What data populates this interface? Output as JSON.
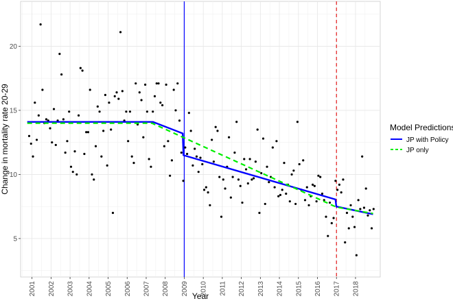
{
  "chart_data": {
    "type": "scatter",
    "xlabel": "Year",
    "ylabel": "Change in mortality rate 20-29",
    "xlim": [
      2000.4,
      2019.3
    ],
    "ylim": [
      2.0,
      23.5
    ],
    "x_ticks": [
      "2001",
      "2002",
      "2003",
      "2004",
      "2005",
      "2006",
      "2007",
      "2008",
      "2009",
      "2010",
      "2011",
      "2012",
      "2013",
      "2014",
      "2015",
      "2016",
      "2017",
      "2018"
    ],
    "y_ticks": [
      5,
      10,
      15,
      20
    ],
    "grid": true,
    "legend": {
      "title": "Model Predictions",
      "placement": "right",
      "entries": [
        {
          "label": "JP with Policy",
          "color": "#0000ff",
          "style": "solid"
        },
        {
          "label": "JP only",
          "color": "#00ee00",
          "style": "dashed"
        }
      ]
    },
    "vlines": [
      {
        "x": 2009.0,
        "color": "#0000ff",
        "style": "solid"
      },
      {
        "x": 2017.0,
        "color": "#e31a1c",
        "style": "dashed"
      }
    ],
    "series": [
      {
        "name": "JP with Policy",
        "color": "#0000ff",
        "style": "solid",
        "x": [
          2000.75,
          2007.35,
          2008.92,
          2008.96,
          2016.95,
          2016.99,
          2018.92
        ],
        "y": [
          14.1,
          14.1,
          13.2,
          11.5,
          8.05,
          7.5,
          6.9
        ]
      },
      {
        "name": "JP only",
        "color": "#00ee00",
        "style": "dashed",
        "x": [
          2000.75,
          2007.3,
          2017.0,
          2018.92
        ],
        "y": [
          14.0,
          14.0,
          7.45,
          6.95
        ]
      },
      {
        "name": "observed",
        "color": "#000000",
        "points": [
          [
            2000.85,
            13.0
          ],
          [
            2000.95,
            12.4
          ],
          [
            2001.05,
            11.4
          ],
          [
            2001.15,
            15.6
          ],
          [
            2001.25,
            12.7
          ],
          [
            2001.35,
            14.6
          ],
          [
            2001.45,
            21.7
          ],
          [
            2001.55,
            16.6
          ],
          [
            2001.65,
            14.0
          ],
          [
            2001.75,
            14.3
          ],
          [
            2001.85,
            14.2
          ],
          [
            2001.95,
            13.6
          ],
          [
            2002.05,
            12.5
          ],
          [
            2002.15,
            15.1
          ],
          [
            2002.25,
            12.3
          ],
          [
            2002.35,
            14.2
          ],
          [
            2002.45,
            19.4
          ],
          [
            2002.55,
            17.8
          ],
          [
            2002.65,
            14.3
          ],
          [
            2002.75,
            11.7
          ],
          [
            2002.85,
            12.6
          ],
          [
            2002.95,
            14.9
          ],
          [
            2003.05,
            10.6
          ],
          [
            2003.15,
            10.2
          ],
          [
            2003.25,
            11.8
          ],
          [
            2003.35,
            10.0
          ],
          [
            2003.45,
            14.6
          ],
          [
            2003.55,
            18.3
          ],
          [
            2003.65,
            18.1
          ],
          [
            2003.75,
            11.6
          ],
          [
            2003.85,
            13.3
          ],
          [
            2003.95,
            13.3
          ],
          [
            2004.05,
            16.6
          ],
          [
            2004.15,
            10.0
          ],
          [
            2004.25,
            9.6
          ],
          [
            2004.35,
            12.2
          ],
          [
            2004.45,
            15.3
          ],
          [
            2004.55,
            14.9
          ],
          [
            2004.65,
            11.4
          ],
          [
            2004.75,
            13.4
          ],
          [
            2004.85,
            16.2
          ],
          [
            2004.95,
            10.7
          ],
          [
            2005.05,
            15.6
          ],
          [
            2005.15,
            13.5
          ],
          [
            2005.25,
            7.0
          ],
          [
            2005.35,
            16.1
          ],
          [
            2005.45,
            16.4
          ],
          [
            2005.55,
            15.9
          ],
          [
            2005.65,
            21.1
          ],
          [
            2005.75,
            16.5
          ],
          [
            2005.85,
            14.2
          ],
          [
            2005.95,
            14.9
          ],
          [
            2006.05,
            12.6
          ],
          [
            2006.15,
            14.9
          ],
          [
            2006.25,
            11.4
          ],
          [
            2006.35,
            10.9
          ],
          [
            2006.45,
            17.1
          ],
          [
            2006.55,
            13.9
          ],
          [
            2006.65,
            16.4
          ],
          [
            2006.75,
            15.8
          ],
          [
            2006.85,
            12.9
          ],
          [
            2006.95,
            17.0
          ],
          [
            2007.05,
            14.9
          ],
          [
            2007.15,
            11.2
          ],
          [
            2007.25,
            10.6
          ],
          [
            2007.35,
            14.9
          ],
          [
            2007.45,
            16.1
          ],
          [
            2007.55,
            17.1
          ],
          [
            2007.65,
            17.1
          ],
          [
            2007.75,
            15.6
          ],
          [
            2007.85,
            15.4
          ],
          [
            2007.95,
            12.2
          ],
          [
            2008.05,
            17.0
          ],
          [
            2008.15,
            12.6
          ],
          [
            2008.25,
            9.9
          ],
          [
            2008.35,
            11.1
          ],
          [
            2008.45,
            16.6
          ],
          [
            2008.55,
            15.0
          ],
          [
            2008.65,
            17.1
          ],
          [
            2008.75,
            14.2
          ],
          [
            2008.85,
            11.7
          ],
          [
            2008.95,
            9.5
          ],
          [
            2009.05,
            12.1
          ],
          [
            2009.15,
            11.6
          ],
          [
            2009.25,
            14.8
          ],
          [
            2009.35,
            13.4
          ],
          [
            2009.45,
            10.7
          ],
          [
            2009.55,
            12.0
          ],
          [
            2009.65,
            11.4
          ],
          [
            2009.75,
            10.2
          ],
          [
            2009.85,
            11.3
          ],
          [
            2009.95,
            10.8
          ],
          [
            2010.05,
            8.8
          ],
          [
            2010.15,
            9.0
          ],
          [
            2010.25,
            8.6
          ],
          [
            2010.35,
            7.6
          ],
          [
            2010.45,
            12.7
          ],
          [
            2010.55,
            11.0
          ],
          [
            2010.65,
            13.7
          ],
          [
            2010.75,
            13.4
          ],
          [
            2010.85,
            9.8
          ],
          [
            2010.95,
            6.7
          ],
          [
            2011.05,
            9.6
          ],
          [
            2011.15,
            8.9
          ],
          [
            2011.25,
            10.6
          ],
          [
            2011.35,
            12.9
          ],
          [
            2011.45,
            8.2
          ],
          [
            2011.55,
            9.8
          ],
          [
            2011.65,
            11.7
          ],
          [
            2011.75,
            14.1
          ],
          [
            2011.85,
            9.6
          ],
          [
            2011.95,
            9.1
          ],
          [
            2012.05,
            7.8
          ],
          [
            2012.15,
            11.2
          ],
          [
            2012.25,
            10.4
          ],
          [
            2012.35,
            9.3
          ],
          [
            2012.45,
            11.2
          ],
          [
            2012.55,
            9.6
          ],
          [
            2012.65,
            9.7
          ],
          [
            2012.75,
            11.0
          ],
          [
            2012.85,
            13.5
          ],
          [
            2012.95,
            7.0
          ],
          [
            2013.05,
            10.1
          ],
          [
            2013.15,
            12.8
          ],
          [
            2013.25,
            7.7
          ],
          [
            2013.35,
            10.6
          ],
          [
            2013.45,
            9.4
          ],
          [
            2013.55,
            9.8
          ],
          [
            2013.65,
            12.1
          ],
          [
            2013.75,
            9.0
          ],
          [
            2013.85,
            12.6
          ],
          [
            2013.95,
            8.3
          ],
          [
            2014.05,
            8.4
          ],
          [
            2014.15,
            8.8
          ],
          [
            2014.25,
            10.9
          ],
          [
            2014.35,
            8.5
          ],
          [
            2014.45,
            9.2
          ],
          [
            2014.55,
            7.9
          ],
          [
            2014.65,
            10.0
          ],
          [
            2014.75,
            10.3
          ],
          [
            2014.85,
            7.7
          ],
          [
            2014.95,
            14.1
          ],
          [
            2015.05,
            10.8
          ],
          [
            2015.15,
            8.8
          ],
          [
            2015.25,
            11.1
          ],
          [
            2015.35,
            8.0
          ],
          [
            2015.45,
            9.0
          ],
          [
            2015.55,
            7.6
          ],
          [
            2015.65,
            8.3
          ],
          [
            2015.75,
            9.2
          ],
          [
            2015.85,
            9.1
          ],
          [
            2015.95,
            7.9
          ],
          [
            2016.05,
            9.9
          ],
          [
            2016.15,
            9.8
          ],
          [
            2016.25,
            8.5
          ],
          [
            2016.35,
            8.0
          ],
          [
            2016.45,
            6.7
          ],
          [
            2016.55,
            5.2
          ],
          [
            2016.65,
            7.8
          ],
          [
            2016.75,
            6.2
          ],
          [
            2016.85,
            6.6
          ],
          [
            2016.95,
            9.5
          ],
          [
            2017.05,
            8.8
          ],
          [
            2017.15,
            9.2
          ],
          [
            2017.25,
            8.6
          ],
          [
            2017.35,
            9.6
          ],
          [
            2017.45,
            4.7
          ],
          [
            2017.55,
            7.0
          ],
          [
            2017.65,
            5.8
          ],
          [
            2017.75,
            7.6
          ],
          [
            2017.85,
            6.7
          ],
          [
            2017.95,
            5.9
          ],
          [
            2018.05,
            3.7
          ],
          [
            2018.15,
            8.0
          ],
          [
            2018.25,
            7.3
          ],
          [
            2018.35,
            11.4
          ],
          [
            2018.45,
            7.4
          ],
          [
            2018.55,
            8.9
          ],
          [
            2018.65,
            6.8
          ],
          [
            2018.75,
            7.2
          ],
          [
            2018.85,
            5.8
          ],
          [
            2018.95,
            7.3
          ]
        ]
      }
    ]
  }
}
